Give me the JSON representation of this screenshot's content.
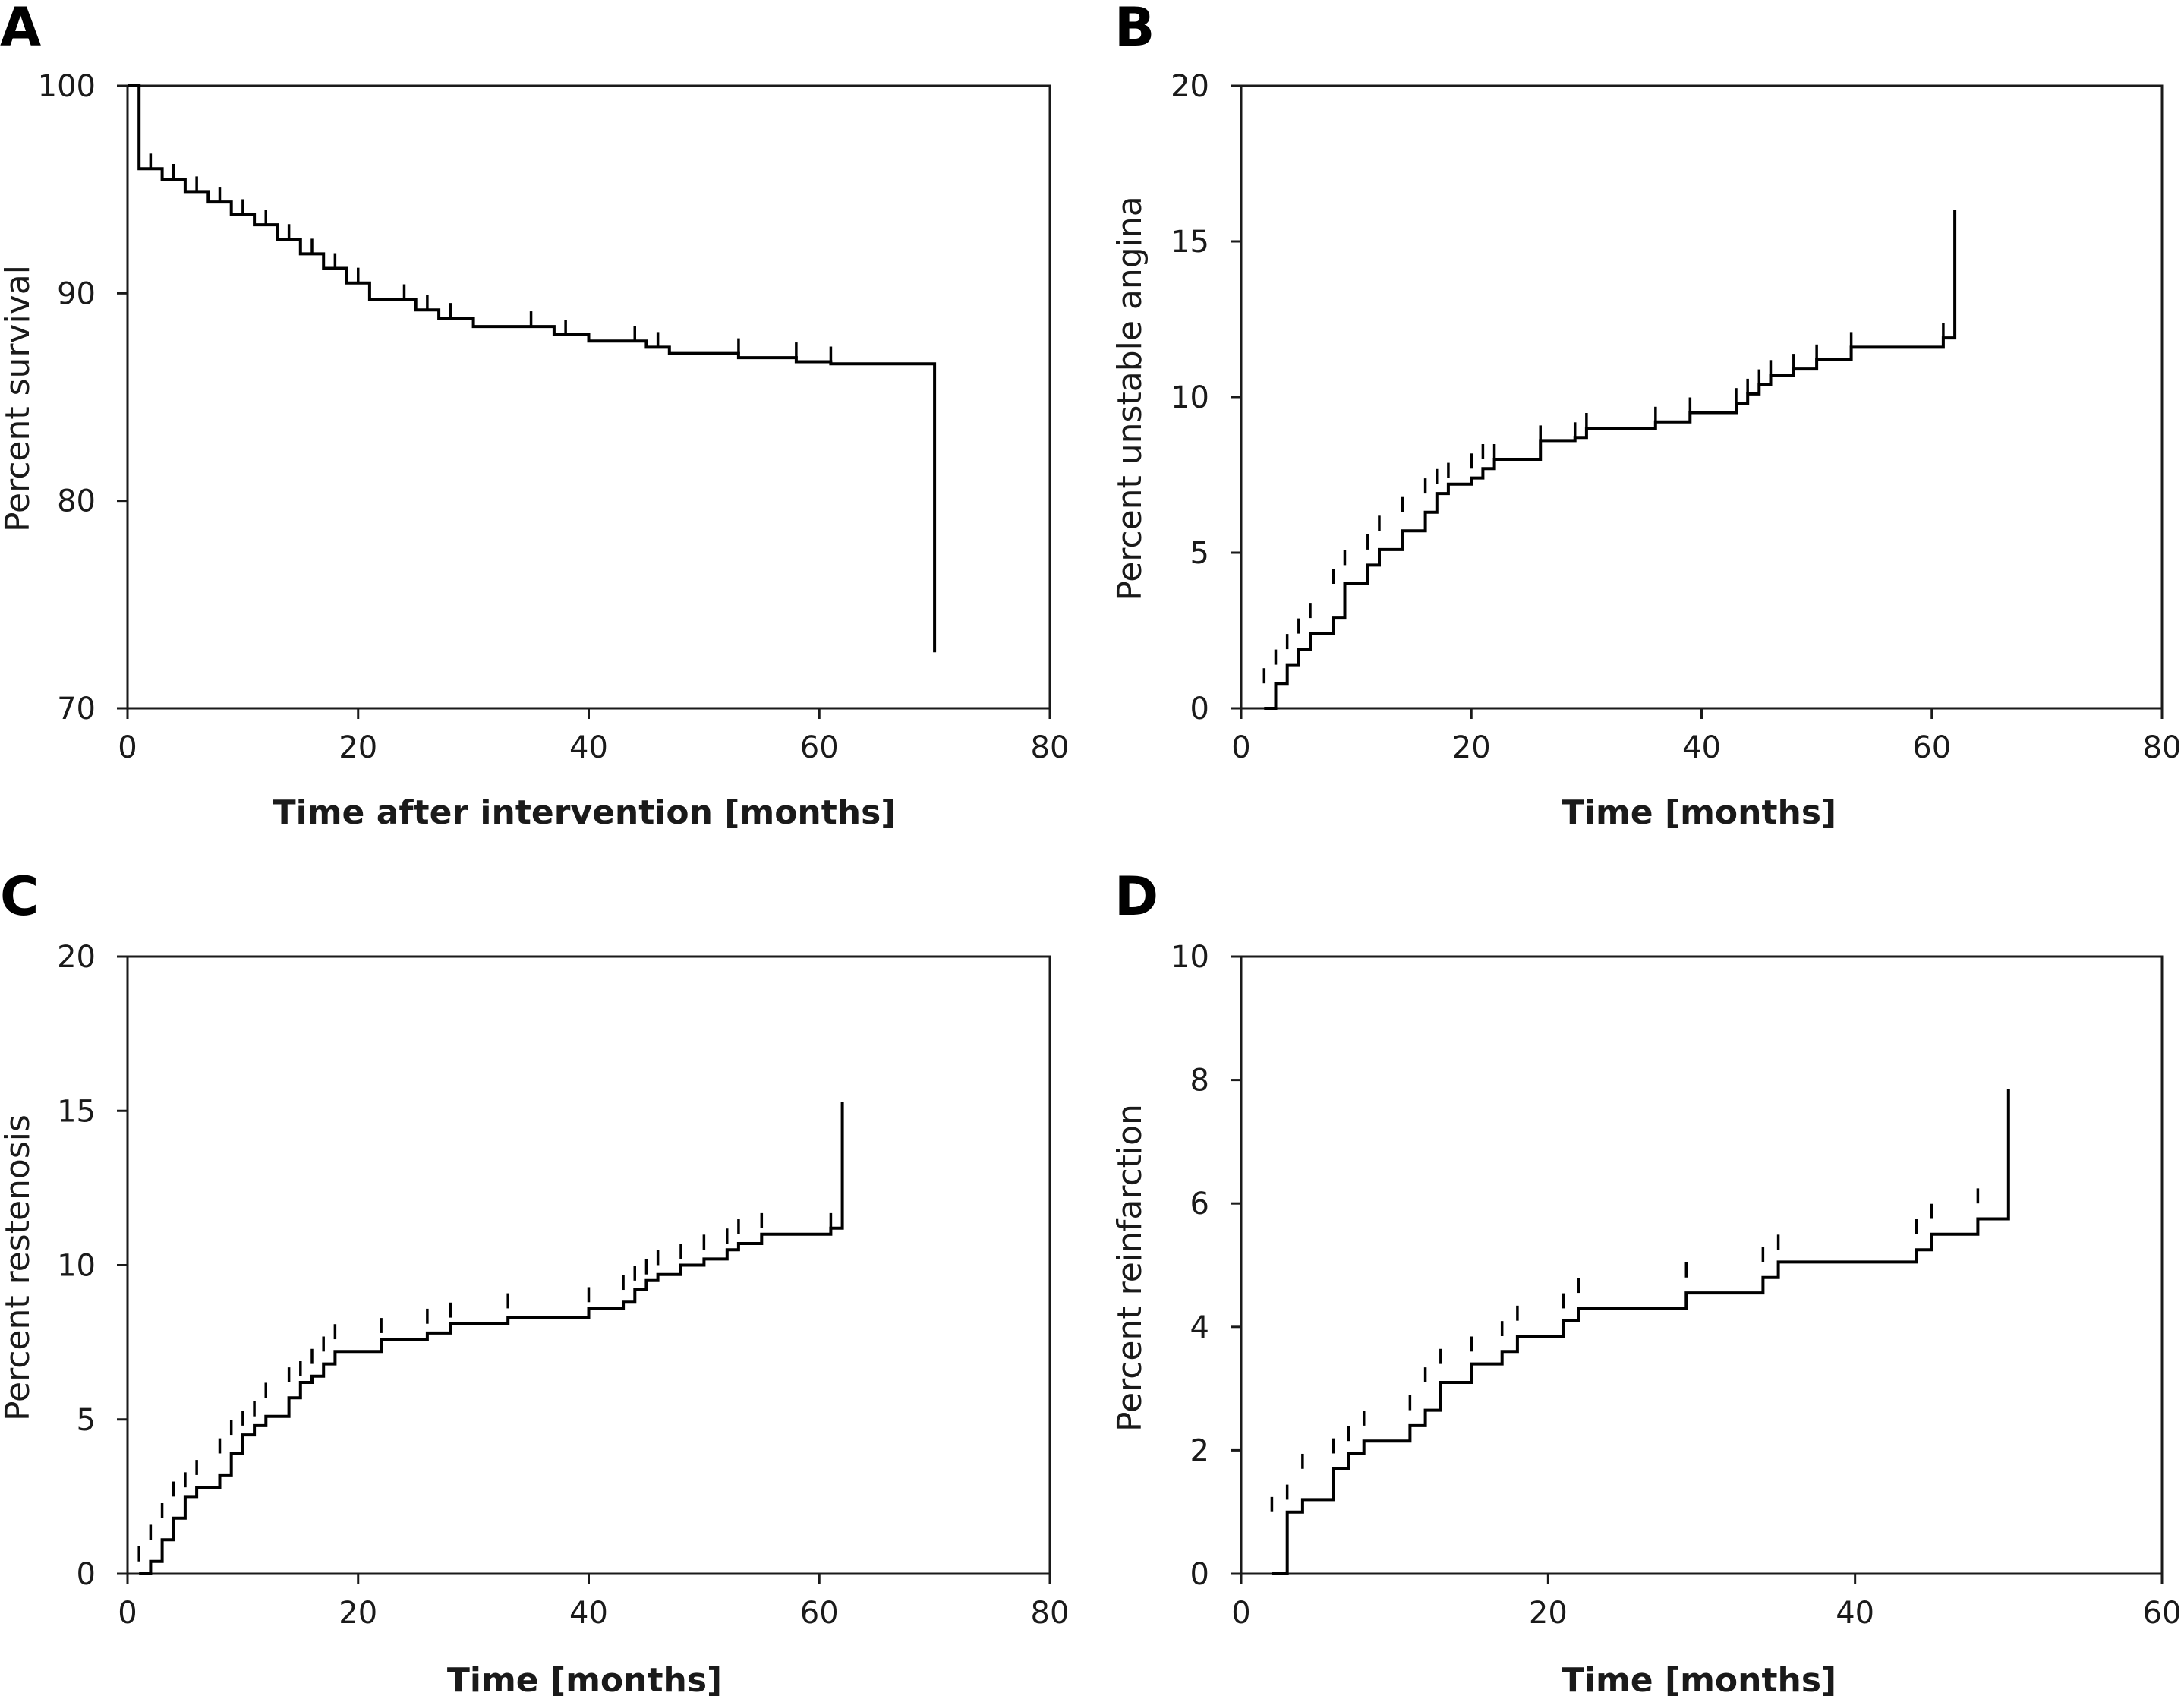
{
  "chart_data": [
    {
      "type": "line",
      "panel": "A",
      "xlabel": "Time after intervention [months]",
      "ylabel": "Percent survival",
      "xlim": [
        0,
        80
      ],
      "ylim": [
        70,
        100
      ],
      "x_ticks": [
        "0",
        "20",
        "40",
        "60",
        "80"
      ],
      "y_ticks": [
        "70",
        "80",
        "90",
        "100"
      ],
      "grid": false,
      "steps": {
        "x": [
          0,
          1,
          3,
          5,
          7,
          9,
          11,
          13,
          15,
          17,
          19,
          21,
          25,
          27,
          30,
          37,
          40,
          45,
          47,
          53,
          58,
          61,
          70
        ],
        "y": [
          100,
          96.0,
          95.5,
          94.9,
          94.4,
          93.8,
          93.3,
          92.6,
          91.9,
          91.2,
          90.5,
          89.7,
          89.2,
          88.8,
          88.4,
          88.0,
          87.7,
          87.4,
          87.1,
          86.9,
          86.7,
          86.6,
          72.7
        ]
      },
      "censored": [
        {
          "x": 2,
          "y": 96.0
        },
        {
          "x": 4,
          "y": 95.5
        },
        {
          "x": 6,
          "y": 94.9
        },
        {
          "x": 8,
          "y": 94.4
        },
        {
          "x": 10,
          "y": 93.8
        },
        {
          "x": 12,
          "y": 93.3
        },
        {
          "x": 14,
          "y": 92.6
        },
        {
          "x": 16,
          "y": 91.9
        },
        {
          "x": 18,
          "y": 91.2
        },
        {
          "x": 20,
          "y": 90.5
        },
        {
          "x": 24,
          "y": 89.7
        },
        {
          "x": 26,
          "y": 89.2
        },
        {
          "x": 28,
          "y": 88.8
        },
        {
          "x": 35,
          "y": 88.4
        },
        {
          "x": 38,
          "y": 88.0
        },
        {
          "x": 44,
          "y": 87.7
        },
        {
          "x": 46,
          "y": 87.4
        },
        {
          "x": 53,
          "y": 87.1
        },
        {
          "x": 58,
          "y": 86.9
        },
        {
          "x": 61,
          "y": 86.7
        }
      ]
    },
    {
      "type": "line",
      "panel": "B",
      "xlabel": "Time [months]",
      "ylabel": "Percent unstable angina",
      "xlim": [
        0,
        80
      ],
      "ylim": [
        0,
        20
      ],
      "x_ticks": [
        "0",
        "20",
        "40",
        "60",
        "80"
      ],
      "y_ticks": [
        "0",
        "5",
        "10",
        "15",
        "20"
      ],
      "grid": false,
      "steps": {
        "x": [
          2,
          3,
          4,
          5,
          6,
          8,
          9,
          11,
          12,
          14,
          16,
          17,
          18,
          20,
          21,
          22,
          26,
          29,
          30,
          36,
          39,
          43,
          44,
          45,
          46,
          48,
          50,
          53,
          61,
          62,
          62
        ],
        "y": [
          0,
          0.8,
          1.4,
          1.9,
          2.4,
          2.9,
          4.0,
          4.6,
          5.1,
          5.7,
          6.3,
          6.9,
          7.2,
          7.4,
          7.7,
          8.0,
          8.6,
          8.7,
          9.0,
          9.2,
          9.5,
          9.8,
          10.1,
          10.4,
          10.7,
          10.9,
          11.2,
          11.6,
          11.9,
          16.0,
          16.0
        ]
      },
      "censored": [
        {
          "x": 2,
          "y": 0.8
        },
        {
          "x": 3,
          "y": 1.4
        },
        {
          "x": 4,
          "y": 1.9
        },
        {
          "x": 5,
          "y": 2.4
        },
        {
          "x": 6,
          "y": 2.9
        },
        {
          "x": 8,
          "y": 4.0
        },
        {
          "x": 9,
          "y": 4.6
        },
        {
          "x": 11,
          "y": 5.1
        },
        {
          "x": 12,
          "y": 5.7
        },
        {
          "x": 14,
          "y": 6.3
        },
        {
          "x": 16,
          "y": 6.9
        },
        {
          "x": 17,
          "y": 7.2
        },
        {
          "x": 18,
          "y": 7.4
        },
        {
          "x": 20,
          "y": 7.7
        },
        {
          "x": 21,
          "y": 8.0
        },
        {
          "x": 22,
          "y": 8.0
        },
        {
          "x": 26,
          "y": 8.6
        },
        {
          "x": 29,
          "y": 8.7
        },
        {
          "x": 30,
          "y": 9.0
        },
        {
          "x": 36,
          "y": 9.2
        },
        {
          "x": 39,
          "y": 9.5
        },
        {
          "x": 43,
          "y": 9.8
        },
        {
          "x": 44,
          "y": 10.1
        },
        {
          "x": 45,
          "y": 10.4
        },
        {
          "x": 46,
          "y": 10.7
        },
        {
          "x": 48,
          "y": 10.9
        },
        {
          "x": 50,
          "y": 11.2
        },
        {
          "x": 53,
          "y": 11.6
        },
        {
          "x": 61,
          "y": 11.9
        }
      ]
    },
    {
      "type": "line",
      "panel": "C",
      "xlabel": "Time [months]",
      "ylabel": "Percent restenosis",
      "xlim": [
        0,
        80
      ],
      "ylim": [
        0,
        20
      ],
      "x_ticks": [
        "0",
        "20",
        "40",
        "60",
        "80"
      ],
      "y_ticks": [
        "0",
        "5",
        "10",
        "15",
        "20"
      ],
      "grid": false,
      "steps": {
        "x": [
          1,
          2,
          3,
          4,
          5,
          6,
          8,
          9,
          10,
          11,
          12,
          14,
          15,
          16,
          17,
          18,
          22,
          26,
          28,
          33,
          40,
          43,
          44,
          45,
          46,
          48,
          50,
          52,
          53,
          55,
          61,
          62,
          62
        ],
        "y": [
          0,
          0.4,
          1.1,
          1.8,
          2.5,
          2.8,
          3.2,
          3.9,
          4.5,
          4.8,
          5.1,
          5.7,
          6.2,
          6.4,
          6.8,
          7.2,
          7.6,
          7.8,
          8.1,
          8.3,
          8.6,
          8.8,
          9.2,
          9.5,
          9.7,
          10.0,
          10.2,
          10.5,
          10.7,
          11.0,
          11.2,
          15.3,
          15.3
        ]
      },
      "censored": [
        {
          "x": 1,
          "y": 0.4
        },
        {
          "x": 2,
          "y": 1.1
        },
        {
          "x": 3,
          "y": 1.8
        },
        {
          "x": 4,
          "y": 2.5
        },
        {
          "x": 5,
          "y": 2.8
        },
        {
          "x": 6,
          "y": 3.2
        },
        {
          "x": 8,
          "y": 3.9
        },
        {
          "x": 9,
          "y": 4.5
        },
        {
          "x": 10,
          "y": 4.8
        },
        {
          "x": 11,
          "y": 5.1
        },
        {
          "x": 12,
          "y": 5.7
        },
        {
          "x": 14,
          "y": 6.2
        },
        {
          "x": 15,
          "y": 6.4
        },
        {
          "x": 16,
          "y": 6.8
        },
        {
          "x": 17,
          "y": 7.2
        },
        {
          "x": 18,
          "y": 7.6
        },
        {
          "x": 22,
          "y": 7.8
        },
        {
          "x": 26,
          "y": 8.1
        },
        {
          "x": 28,
          "y": 8.3
        },
        {
          "x": 33,
          "y": 8.6
        },
        {
          "x": 40,
          "y": 8.8
        },
        {
          "x": 43,
          "y": 9.2
        },
        {
          "x": 44,
          "y": 9.5
        },
        {
          "x": 45,
          "y": 9.7
        },
        {
          "x": 46,
          "y": 10.0
        },
        {
          "x": 48,
          "y": 10.2
        },
        {
          "x": 50,
          "y": 10.5
        },
        {
          "x": 52,
          "y": 10.7
        },
        {
          "x": 53,
          "y": 11.0
        },
        {
          "x": 55,
          "y": 11.2
        },
        {
          "x": 61,
          "y": 11.2
        }
      ]
    },
    {
      "type": "line",
      "panel": "D",
      "xlabel": "Time [months]",
      "ylabel": "Percent reinfarction",
      "xlim": [
        0,
        60
      ],
      "ylim": [
        0,
        10
      ],
      "x_ticks": [
        "0",
        "20",
        "40",
        "60"
      ],
      "y_ticks": [
        "0",
        "2",
        "4",
        "6",
        "8",
        "10"
      ],
      "grid": false,
      "steps": {
        "x": [
          2,
          3,
          4,
          6,
          7,
          8,
          11,
          12,
          13,
          15,
          17,
          18,
          21,
          22,
          29,
          34,
          35,
          44,
          45,
          48,
          50,
          50
        ],
        "y": [
          0,
          1.0,
          1.2,
          1.7,
          1.95,
          2.15,
          2.4,
          2.65,
          3.1,
          3.4,
          3.6,
          3.85,
          4.1,
          4.3,
          4.55,
          4.8,
          5.05,
          5.25,
          5.5,
          5.75,
          6.0,
          7.85
        ]
      },
      "censored": [
        {
          "x": 2,
          "y": 1.0
        },
        {
          "x": 3,
          "y": 1.2
        },
        {
          "x": 4,
          "y": 1.7
        },
        {
          "x": 6,
          "y": 1.95
        },
        {
          "x": 7,
          "y": 2.15
        },
        {
          "x": 8,
          "y": 2.4
        },
        {
          "x": 11,
          "y": 2.65
        },
        {
          "x": 12,
          "y": 3.1
        },
        {
          "x": 13,
          "y": 3.4
        },
        {
          "x": 15,
          "y": 3.6
        },
        {
          "x": 17,
          "y": 3.85
        },
        {
          "x": 18,
          "y": 4.1
        },
        {
          "x": 21,
          "y": 4.3
        },
        {
          "x": 22,
          "y": 4.55
        },
        {
          "x": 29,
          "y": 4.8
        },
        {
          "x": 34,
          "y": 5.05
        },
        {
          "x": 35,
          "y": 5.25
        },
        {
          "x": 44,
          "y": 5.5
        },
        {
          "x": 45,
          "y": 5.75
        },
        {
          "x": 48,
          "y": 6.0
        }
      ]
    }
  ]
}
